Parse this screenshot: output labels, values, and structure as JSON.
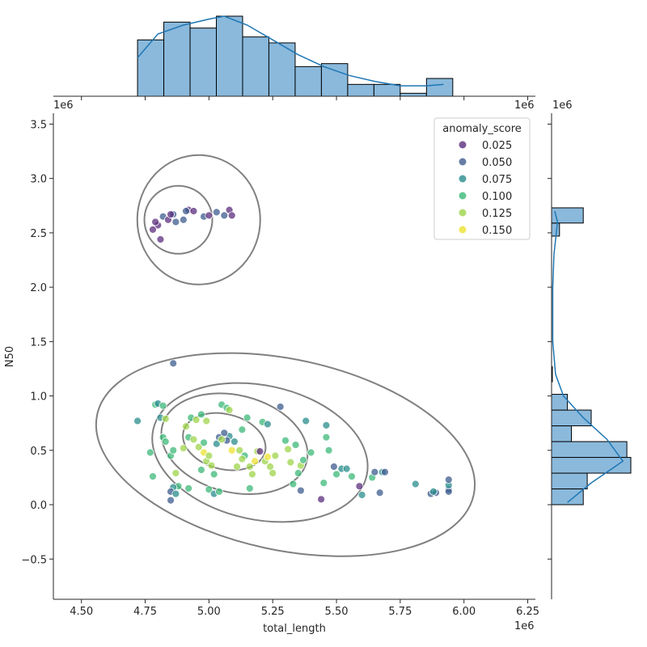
{
  "chart_data": {
    "type": "scatter",
    "subtype": "jointplot with kde contours and marginal histograms",
    "xlabel": "total_length",
    "ylabel": "N50",
    "x_offset_label": "1e6",
    "y_offset_label": "1e6",
    "xlim": [
      4.39,
      6.28
    ],
    "ylim": [
      -0.87,
      3.6
    ],
    "xticks": [
      "4.50",
      "4.75",
      "5.00",
      "5.25",
      "5.50",
      "5.75",
      "6.00",
      "6.25"
    ],
    "yticks": [
      "−0.5",
      "0.0",
      "0.5",
      "1.0",
      "1.5",
      "2.0",
      "2.5",
      "3.0",
      "3.5"
    ],
    "legend": {
      "title": "anomaly_score",
      "position": "top-right",
      "entries": [
        {
          "label": "0.025",
          "color": "#5b2d7e"
        },
        {
          "label": "0.050",
          "color": "#3e5c8f"
        },
        {
          "label": "0.075",
          "color": "#2a8c8c"
        },
        {
          "label": "0.100",
          "color": "#3cb878"
        },
        {
          "label": "0.125",
          "color": "#9dd44a"
        },
        {
          "label": "0.150",
          "color": "#ece230"
        }
      ]
    },
    "points": [
      [
        4.8,
        2.57,
        0.02
      ],
      [
        4.82,
        2.65,
        0.04
      ],
      [
        4.79,
        2.6,
        0.03
      ],
      [
        4.78,
        2.53,
        0.02
      ],
      [
        4.84,
        2.62,
        0.03
      ],
      [
        4.86,
        2.67,
        0.04
      ],
      [
        4.87,
        2.6,
        0.05
      ],
      [
        4.9,
        2.62,
        0.04
      ],
      [
        4.92,
        2.71,
        0.03
      ],
      [
        4.94,
        2.7,
        0.02
      ],
      [
        4.98,
        2.65,
        0.04
      ],
      [
        5.0,
        2.66,
        0.03
      ],
      [
        5.03,
        2.69,
        0.05
      ],
      [
        5.06,
        2.66,
        0.04
      ],
      [
        5.08,
        2.71,
        0.03
      ],
      [
        5.09,
        2.66,
        0.02
      ],
      [
        4.81,
        2.44,
        0.03
      ],
      [
        4.85,
        2.67,
        0.02
      ],
      [
        4.91,
        2.7,
        0.05
      ],
      [
        4.72,
        0.77,
        0.08
      ],
      [
        4.79,
        0.92,
        0.1
      ],
      [
        4.8,
        0.93,
        0.08
      ],
      [
        4.82,
        0.91,
        0.09
      ],
      [
        4.81,
        0.8,
        0.08
      ],
      [
        4.86,
        1.3,
        0.05
      ],
      [
        4.83,
        0.79,
        0.12
      ],
      [
        4.77,
        0.48,
        0.11
      ],
      [
        4.78,
        0.26,
        0.1
      ],
      [
        4.82,
        0.62,
        0.1
      ],
      [
        4.83,
        0.58,
        0.09
      ],
      [
        4.85,
        0.45,
        0.1
      ],
      [
        4.86,
        0.5,
        0.11
      ],
      [
        4.87,
        0.29,
        0.14
      ],
      [
        4.88,
        0.17,
        0.09
      ],
      [
        4.86,
        0.16,
        0.07
      ],
      [
        4.85,
        0.04,
        0.05
      ],
      [
        4.85,
        0.12,
        0.06
      ],
      [
        4.87,
        0.1,
        0.08
      ],
      [
        4.92,
        0.15,
        0.1
      ],
      [
        4.9,
        0.52,
        0.12
      ],
      [
        4.91,
        0.72,
        0.13
      ],
      [
        4.93,
        0.8,
        0.1
      ],
      [
        4.95,
        0.78,
        0.14
      ],
      [
        4.97,
        0.83,
        0.11
      ],
      [
        4.99,
        0.77,
        0.13
      ],
      [
        4.92,
        0.62,
        0.09
      ],
      [
        4.94,
        0.6,
        0.12
      ],
      [
        4.96,
        0.53,
        0.14
      ],
      [
        4.98,
        0.48,
        0.15
      ],
      [
        4.99,
        0.4,
        0.13
      ],
      [
        5.0,
        0.45,
        0.14
      ],
      [
        5.01,
        0.36,
        0.12
      ],
      [
        5.02,
        0.28,
        0.11
      ],
      [
        4.97,
        0.32,
        0.1
      ],
      [
        5.0,
        0.14,
        0.11
      ],
      [
        5.02,
        0.1,
        0.08
      ],
      [
        5.04,
        0.12,
        0.09
      ],
      [
        5.03,
        0.56,
        0.07
      ],
      [
        5.04,
        0.62,
        0.06
      ],
      [
        5.05,
        0.92,
        0.09
      ],
      [
        5.07,
        0.89,
        0.11
      ],
      [
        5.08,
        0.87,
        0.12
      ],
      [
        5.08,
        0.63,
        0.08
      ],
      [
        5.06,
        0.66,
        0.04
      ],
      [
        5.09,
        0.5,
        0.15
      ],
      [
        5.1,
        0.58,
        0.07
      ],
      [
        5.12,
        0.5,
        0.14
      ],
      [
        5.11,
        0.35,
        0.12
      ],
      [
        5.13,
        0.69,
        0.1
      ],
      [
        5.15,
        0.8,
        0.1
      ],
      [
        5.14,
        0.45,
        0.11
      ],
      [
        5.16,
        0.35,
        0.12
      ],
      [
        5.17,
        0.28,
        0.13
      ],
      [
        5.19,
        0.49,
        0.12
      ],
      [
        5.2,
        0.49,
        0.02
      ],
      [
        5.21,
        0.76,
        0.09
      ],
      [
        5.22,
        0.4,
        0.14
      ],
      [
        5.23,
        0.74,
        0.08
      ],
      [
        5.23,
        0.44,
        0.15
      ],
      [
        5.24,
        0.35,
        0.13
      ],
      [
        5.25,
        0.29,
        0.12
      ],
      [
        5.16,
        0.15,
        0.09
      ],
      [
        5.26,
        0.45,
        0.14
      ],
      [
        5.28,
        0.9,
        0.06
      ],
      [
        5.3,
        0.59,
        0.11
      ],
      [
        5.31,
        0.51,
        0.12
      ],
      [
        5.32,
        0.39,
        0.13
      ],
      [
        5.33,
        0.19,
        0.1
      ],
      [
        5.34,
        0.55,
        0.09
      ],
      [
        5.35,
        0.29,
        0.11
      ],
      [
        5.36,
        0.13,
        0.06
      ],
      [
        5.36,
        0.36,
        0.12
      ],
      [
        5.37,
        0.41,
        0.1
      ],
      [
        5.38,
        0.77,
        0.08
      ],
      [
        5.4,
        0.48,
        0.1
      ],
      [
        5.44,
        0.05,
        0.02
      ],
      [
        5.45,
        0.2,
        0.1
      ],
      [
        5.46,
        0.62,
        0.09
      ],
      [
        5.46,
        0.73,
        0.08
      ],
      [
        5.47,
        0.5,
        0.1
      ],
      [
        5.49,
        0.35,
        0.06
      ],
      [
        5.5,
        0.28,
        0.09
      ],
      [
        5.52,
        0.33,
        0.07
      ],
      [
        5.54,
        0.33,
        0.08
      ],
      [
        5.56,
        0.26,
        0.1
      ],
      [
        5.59,
        0.17,
        0.03
      ],
      [
        5.6,
        0.09,
        0.08
      ],
      [
        5.64,
        0.25,
        0.09
      ],
      [
        5.65,
        0.3,
        0.06
      ],
      [
        5.67,
        0.11,
        0.05
      ],
      [
        5.68,
        0.3,
        0.08
      ],
      [
        5.69,
        0.3,
        0.05
      ],
      [
        5.81,
        0.19,
        0.07
      ],
      [
        5.87,
        0.1,
        0.05
      ],
      [
        5.89,
        0.11,
        0.06
      ],
      [
        5.88,
        0.12,
        0.08
      ],
      [
        5.94,
        0.14,
        0.06
      ],
      [
        5.94,
        0.12,
        0.05
      ],
      [
        5.94,
        0.18,
        0.07
      ],
      [
        5.94,
        0.23,
        0.05
      ],
      [
        5.07,
        0.59,
        0.05
      ],
      [
        5.05,
        0.6,
        0.13
      ],
      [
        4.98,
        0.57,
        0.11
      ],
      [
        5.18,
        0.4,
        0.15
      ],
      [
        5.13,
        0.42,
        0.14
      ]
    ],
    "x_hist": {
      "edges": [
        4.72,
        4.823,
        4.926,
        5.029,
        5.132,
        5.235,
        5.338,
        5.441,
        5.544,
        5.647,
        5.75,
        5.853,
        5.956
      ],
      "counts": [
        19,
        25,
        23,
        27,
        20,
        18,
        10,
        11,
        4,
        4,
        1,
        6
      ]
    },
    "y_hist": {
      "edges": [
        0.0,
        0.145,
        0.29,
        0.435,
        0.58,
        0.725,
        0.87,
        1.015
      ],
      "counts": [
        8,
        9,
        20,
        19,
        5,
        10,
        4
      ],
      "upper": [
        {
          "edges": [
            2.47,
            2.59
          ],
          "count": 2
        },
        {
          "edges": [
            2.59,
            2.73
          ],
          "count": 8
        }
      ],
      "mid": [
        {
          "edges": [
            1.13,
            1.27
          ],
          "count": 0.2
        }
      ]
    },
    "colors": {
      "kde_line": "#808080",
      "hist_fill": "#8ab9dc",
      "hist_edge": "#000000",
      "marginal_kde": "#1f77b4"
    }
  }
}
